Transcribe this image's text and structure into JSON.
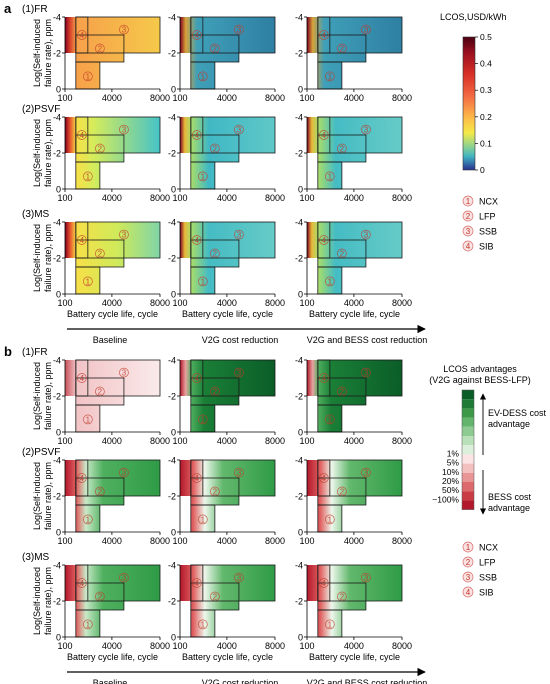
{
  "panel_labels": [
    "a",
    "b"
  ],
  "row_labels": [
    "(1)FR",
    "(2)PSVF",
    "(3)MS"
  ],
  "scenario_labels": [
    "Baseline",
    "V2G cost reduction",
    "V2G and BESS cost reduction"
  ],
  "ylabel_line1": "Log(Self-induced",
  "ylabel_line2": "failure rate), ppm",
  "xlabel": "Battery cycle life, cycle",
  "legend": [
    {
      "num": "1",
      "name": "NCX"
    },
    {
      "num": "2",
      "name": "LFP"
    },
    {
      "num": "3",
      "name": "SSB"
    },
    {
      "num": "4",
      "name": "SIB"
    }
  ],
  "colorbar_a": {
    "title": "LCOS,USD/kWh",
    "ticks": [
      "0.5",
      "0.4",
      "0.3",
      "0.2",
      "0.1",
      "0"
    ]
  },
  "colorbar_b": {
    "title_line1": "LCOS advantages",
    "title_line2": "(V2G against BESS-LFP)",
    "ev_line1": "EV-DESS cost",
    "ev_line2": "advantage",
    "bess_line1": "BESS cost",
    "bess_line2": "advantage",
    "ticks": [
      "1%",
      "5%",
      "10%",
      "20%",
      "50%",
      "~100%"
    ]
  },
  "colors": {
    "green_dark": "#0b5d28",
    "red_dark": "#b2182b",
    "lcos_yellow": "#f4e842",
    "lcos_teal": "#3fb2c1"
  },
  "chart_data": {
    "type": "heatmap",
    "x_label": "Battery cycle life, cycle",
    "y_label": "Log(Self-induced failure rate), ppm",
    "xlim": [
      100,
      8000
    ],
    "x_ticks": [
      "100",
      "4000",
      "8000"
    ],
    "ylim": [
      -4,
      0
    ],
    "y_ticks": [
      "-4",
      "-2",
      "0"
    ],
    "technology_regions": [
      {
        "id": "1",
        "name": "NCX",
        "x": [
          1000,
          3000
        ],
        "y": [
          -1.5,
          0
        ]
      },
      {
        "id": "2",
        "name": "LFP",
        "x": [
          1000,
          5000
        ],
        "y": [
          -3,
          -1.5
        ]
      },
      {
        "id": "3",
        "name": "SSB",
        "x": [
          1000,
          8000
        ],
        "y": [
          -4,
          -2
        ]
      },
      {
        "id": "4",
        "name": "SIB",
        "x": [
          1000,
          2000
        ],
        "y": [
          -4,
          -2
        ]
      }
    ],
    "panel_a_colorbar": {
      "label": "LCOS,USD/kWh",
      "range": [
        0,
        0.5
      ]
    }
  }
}
